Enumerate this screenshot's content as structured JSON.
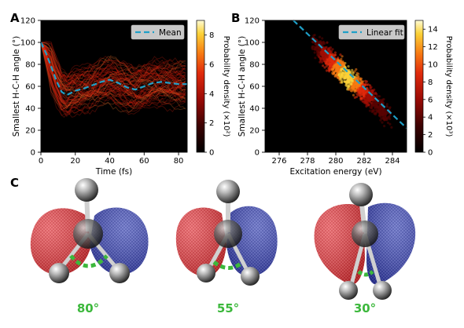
{
  "panels": {
    "a_label": "A",
    "b_label": "B",
    "c_label": "C"
  },
  "chart_data": [
    {
      "panel": "A",
      "type": "heatmap",
      "xlabel": "Time (fs)",
      "ylabel": "Smallest H-C-H angle (°)",
      "xlim": [
        0,
        85
      ],
      "ylim": [
        0,
        120
      ],
      "xticks": [
        0,
        20,
        40,
        60,
        80
      ],
      "yticks": [
        0,
        20,
        40,
        60,
        80,
        100,
        120
      ],
      "colorbar_label": "Probability density (×10²)",
      "colorbar_ticks": [
        0,
        2,
        4,
        6,
        8
      ],
      "colorbar_max": 9,
      "legend": "Mean",
      "legend_position": "top-right",
      "mean_series": {
        "name": "Mean",
        "x": [
          0,
          3,
          6,
          9,
          12,
          15,
          20,
          25,
          30,
          35,
          40,
          45,
          50,
          55,
          60,
          65,
          70,
          75,
          80,
          85
        ],
        "y": [
          100,
          90,
          78,
          65,
          55,
          52,
          56,
          58,
          61,
          64,
          66,
          63,
          59,
          57,
          60,
          63,
          64,
          63,
          62,
          62
        ]
      },
      "colors": {
        "mean_line": "#1fa0c8"
      }
    },
    {
      "panel": "B",
      "type": "heatmap",
      "xlabel": "Excitation energy (eV)",
      "ylabel": "Smallest H-C-H angle (°)",
      "xlim": [
        275,
        285
      ],
      "ylim": [
        0,
        120
      ],
      "xticks": [
        276,
        278,
        280,
        282,
        284
      ],
      "yticks": [
        0,
        20,
        40,
        60,
        80,
        100,
        120
      ],
      "colorbar_label": "Probability density (×10³)",
      "colorbar_ticks": [
        0,
        2,
        4,
        6,
        8,
        10,
        12,
        14
      ],
      "colorbar_max": 15,
      "legend": "Linear fit",
      "legend_position": "top-right",
      "fit_series": {
        "name": "Linear fit",
        "x": [
          277,
          285
        ],
        "y": [
          120,
          22
        ]
      },
      "colors": {
        "fit_line": "#1fa0c8"
      }
    }
  ],
  "molecules": [
    {
      "angle_label": "80°"
    },
    {
      "angle_label": "55°"
    },
    {
      "angle_label": "30°"
    }
  ],
  "colors": {
    "lobe_red": "#e0262c",
    "lobe_blue": "#2c3aa8",
    "angle_green": "#3cb83c",
    "atom_gray": "#6a6a6a"
  }
}
